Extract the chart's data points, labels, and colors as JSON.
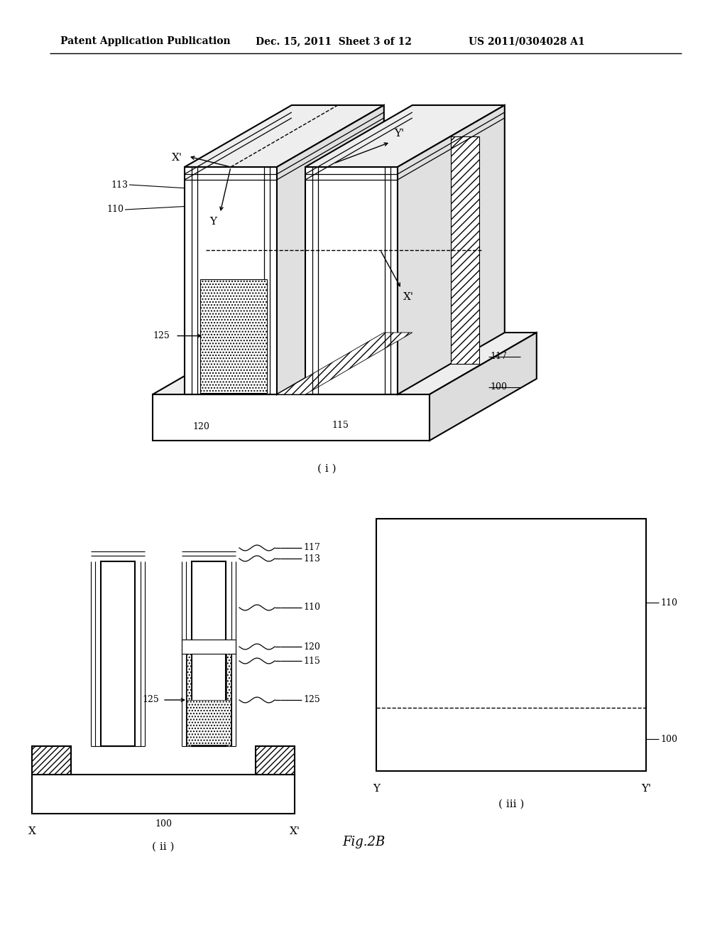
{
  "bg_color": "#ffffff",
  "line_color": "#000000",
  "header_left": "Patent Application Publication",
  "header_mid": "Dec. 15, 2011  Sheet 3 of 12",
  "header_right": "US 2011/0304028 A1",
  "fig_label": "Fig.2B",
  "caption_i": "( i )",
  "caption_ii": "( ii )",
  "caption_iii": "( iii )"
}
